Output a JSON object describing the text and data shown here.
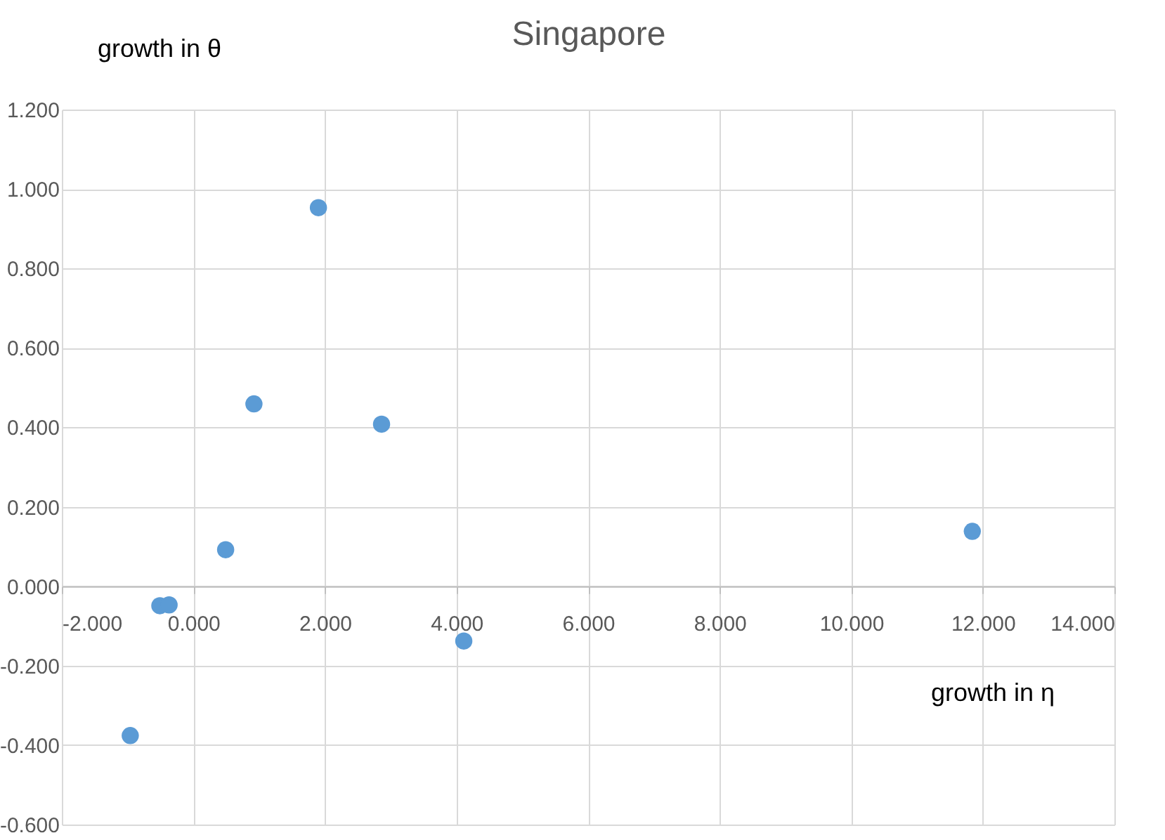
{
  "chart_data": {
    "type": "scatter",
    "title": "Singapore",
    "xlabel": "growth in η",
    "ylabel": "growth in θ",
    "x": [
      1.9,
      0.92,
      2.86,
      0.49,
      -0.51,
      -0.37,
      4.11,
      -0.96,
      11.84
    ],
    "series": [
      {
        "color": "#5b9bd5",
        "values": [
          0.953,
          0.459,
          0.408,
          0.092,
          -0.049,
          -0.047,
          -0.138,
          -0.376,
          0.138
        ]
      }
    ],
    "xlim": [
      -2,
      14
    ],
    "xticks": [
      {
        "value": -2,
        "label": "-2.000"
      },
      {
        "value": 0,
        "label": "0.000"
      },
      {
        "value": 2,
        "label": "2.000"
      },
      {
        "value": 4,
        "label": "4.000"
      },
      {
        "value": 6,
        "label": "6.000"
      },
      {
        "value": 8,
        "label": "8.000"
      },
      {
        "value": 10,
        "label": "10.000"
      },
      {
        "value": 12,
        "label": "12.000"
      },
      {
        "value": 14,
        "label": "14.000"
      }
    ],
    "ylim": [
      -0.6,
      1.2
    ],
    "yticks": [
      {
        "value": -0.6,
        "label": "-0.600"
      },
      {
        "value": -0.4,
        "label": "-0.400"
      },
      {
        "value": -0.2,
        "label": "-0.200"
      },
      {
        "value": 0,
        "label": "0.000"
      },
      {
        "value": 0.2,
        "label": "0.200"
      },
      {
        "value": 0.4,
        "label": "0.400"
      },
      {
        "value": 0.6,
        "label": "0.600"
      },
      {
        "value": 0.8,
        "label": "0.800"
      },
      {
        "value": 1.0,
        "label": "1.000"
      },
      {
        "value": 1.2,
        "label": "1.200"
      }
    ],
    "grid": true,
    "marker": "circle"
  }
}
